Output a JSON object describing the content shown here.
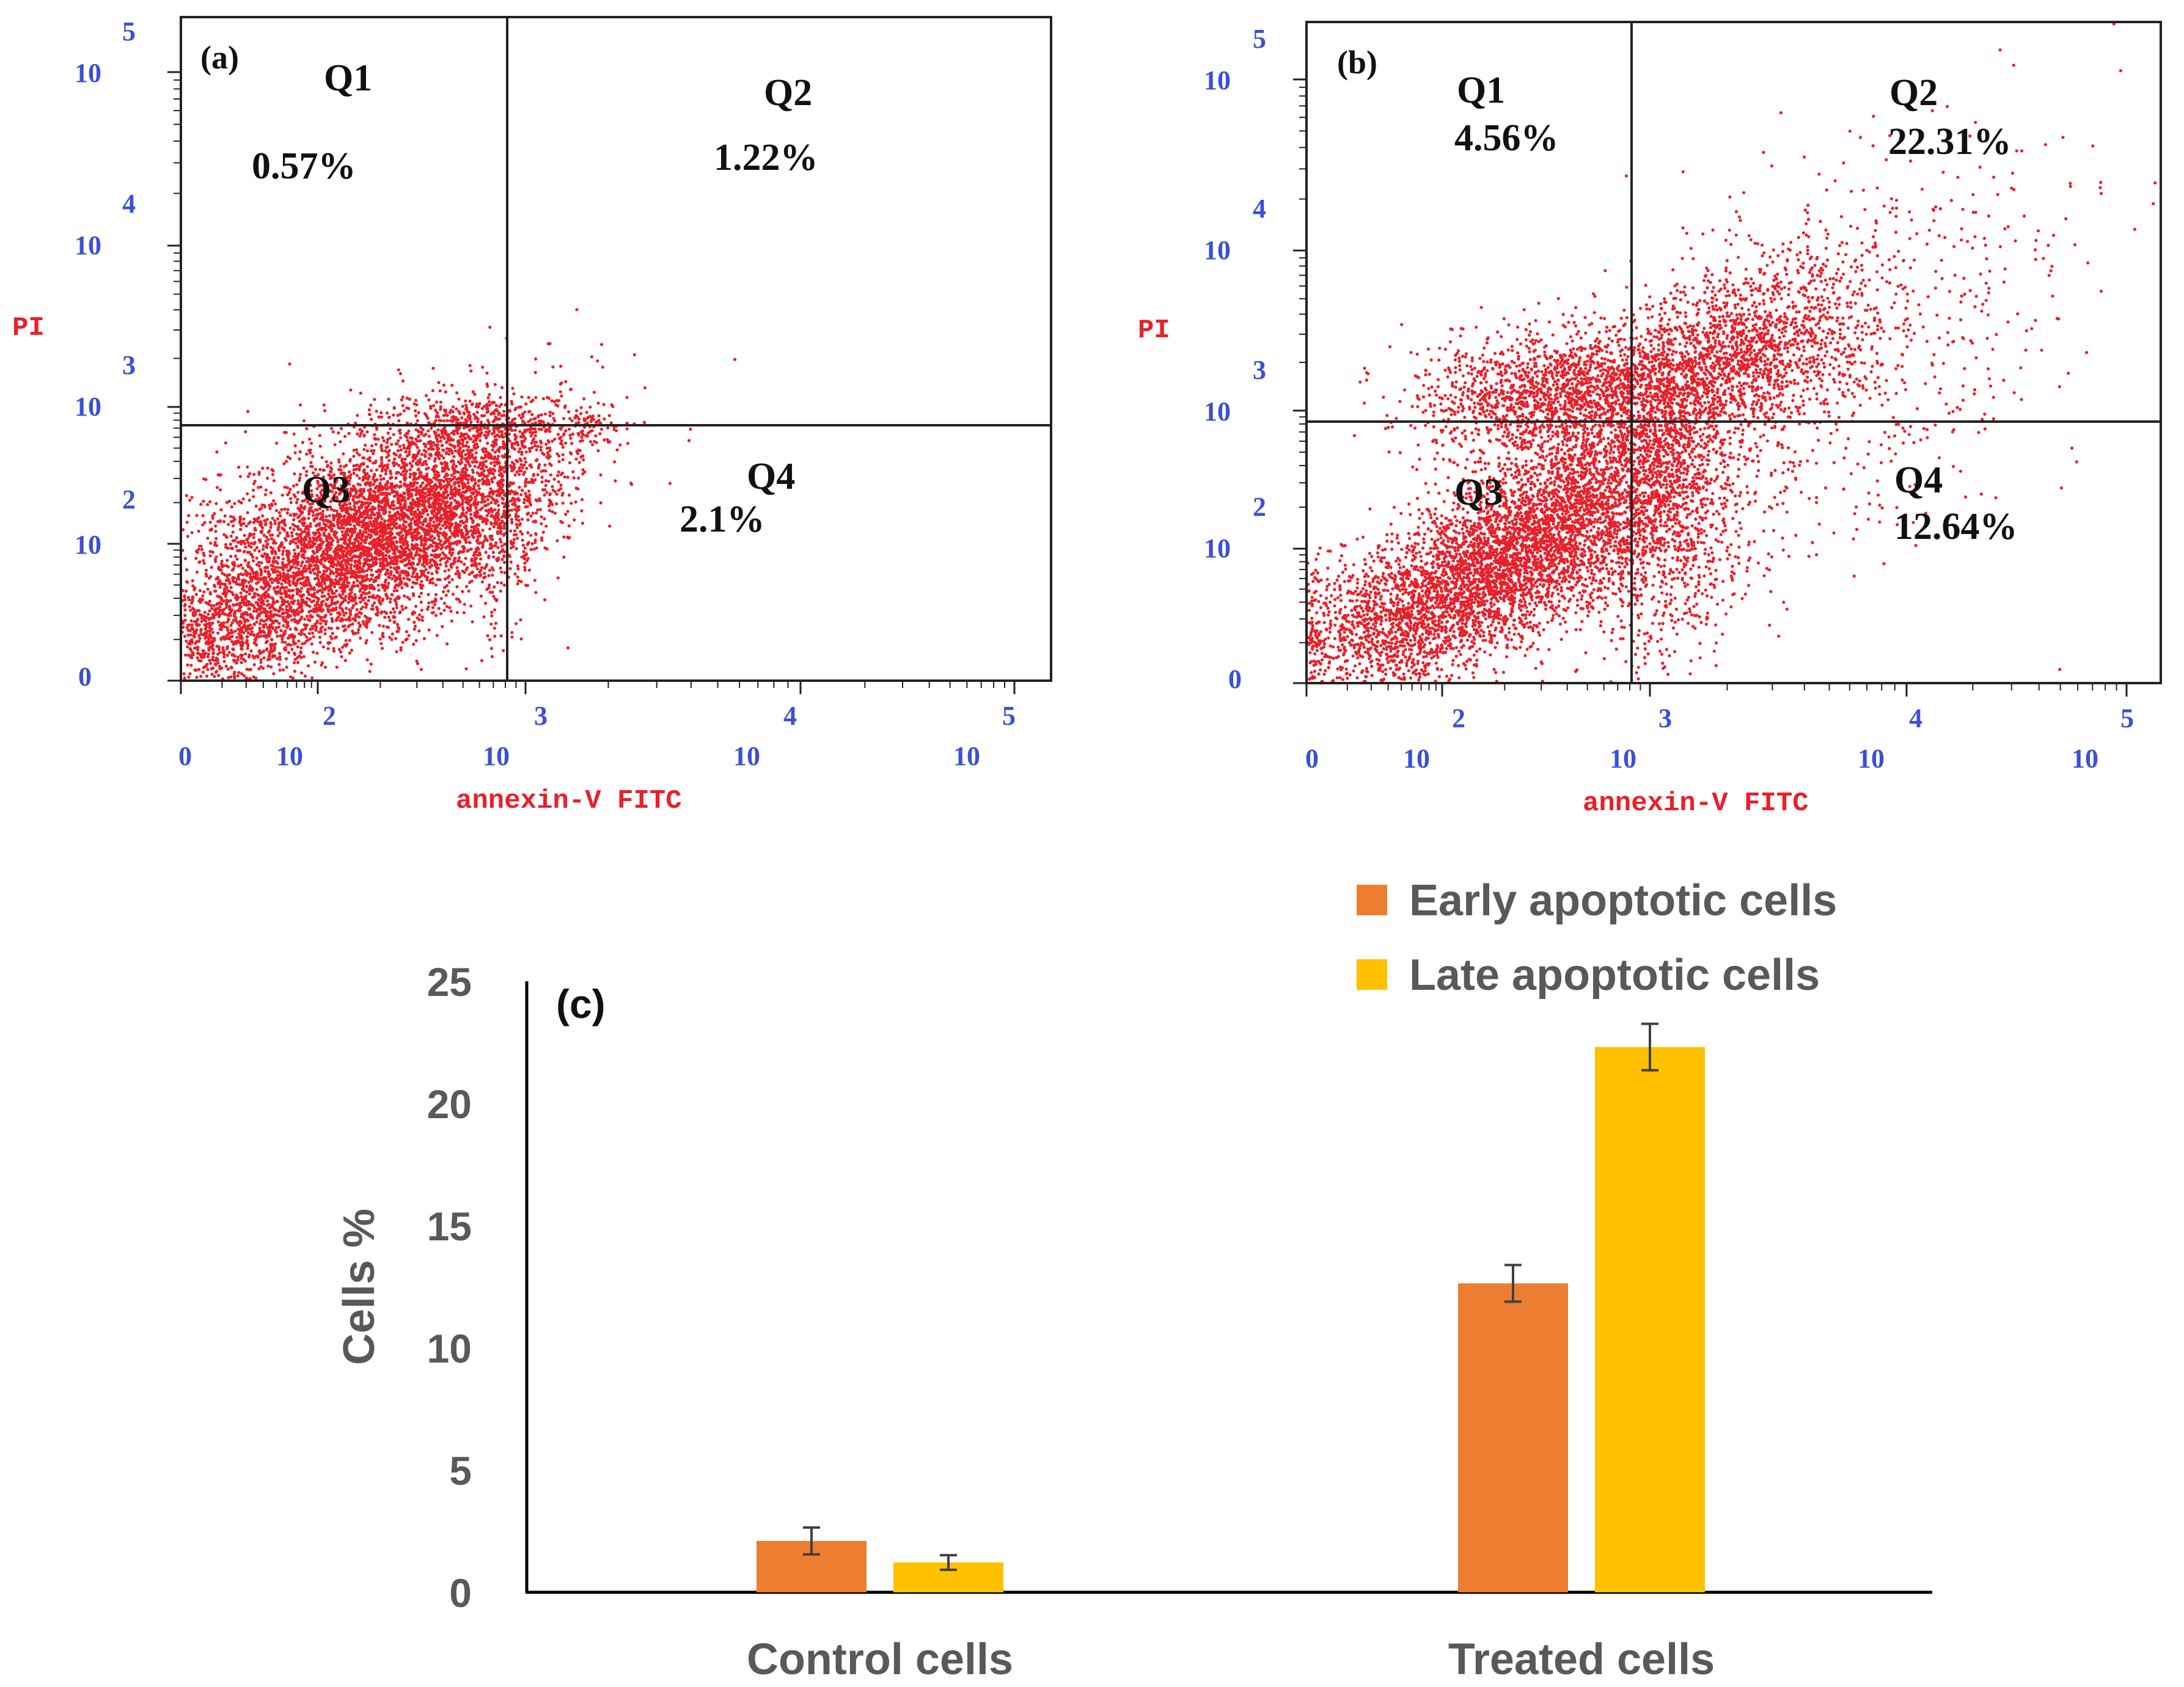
{
  "chart_data": [
    {
      "type": "scatter",
      "panel_label": "(a)",
      "xlabel": "annexin-V FITC",
      "ylabel": "PI",
      "x_ticks": [
        {
          "base": "10",
          "exp": "0"
        },
        {
          "base": "10",
          "exp": "2"
        },
        {
          "base": "10",
          "exp": "3"
        },
        {
          "base": "10",
          "exp": "4"
        },
        {
          "base": "10",
          "exp": "5"
        }
      ],
      "y_ticks": [
        {
          "base": "10",
          "exp": "0"
        },
        {
          "base": "10",
          "exp": "2"
        },
        {
          "base": "10",
          "exp": "3"
        },
        {
          "base": "10",
          "exp": "4"
        },
        {
          "base": "10",
          "exp": "5"
        }
      ],
      "x_tick_labels": [
        "0",
        "10",
        "10",
        "10",
        "10"
      ],
      "x_tick_exps": [
        "",
        "2",
        "3",
        "4",
        "5"
      ],
      "y_tick_labels": [
        "0",
        "10",
        "10",
        "10",
        "10"
      ],
      "y_tick_exps": [
        "",
        "2",
        "3",
        "4",
        "5"
      ],
      "quadrants": [
        {
          "name": "Q1",
          "value": "0.57%"
        },
        {
          "name": "Q2",
          "value": "1.22%"
        },
        {
          "name": "Q3",
          "value": ""
        },
        {
          "name": "Q4",
          "value": "2.1%"
        }
      ],
      "point_color": "#e8202a"
    },
    {
      "type": "scatter",
      "panel_label": "(b)",
      "xlabel": "annexin-V FITC",
      "ylabel": "PI",
      "x_tick_labels": [
        "0",
        "10",
        "10",
        "10",
        "10"
      ],
      "x_tick_exps": [
        "",
        "2",
        "3",
        "4",
        "5"
      ],
      "y_tick_labels": [
        "0",
        "10",
        "10",
        "10",
        "10"
      ],
      "y_tick_exps": [
        "",
        "2",
        "3",
        "4",
        "5"
      ],
      "quadrants": [
        {
          "name": "Q1",
          "value": "4.56%"
        },
        {
          "name": "Q2",
          "value": "22.31%"
        },
        {
          "name": "Q3",
          "value": ""
        },
        {
          "name": "Q4",
          "value": "12.64%"
        }
      ],
      "point_color": "#e8202a"
    },
    {
      "type": "bar",
      "panel_label": "(c)",
      "categories": [
        "Control cells",
        "Treated cells"
      ],
      "series": [
        {
          "name": "Early apoptotic cells",
          "values": [
            2.1,
            12.64
          ],
          "errors": [
            0.55,
            0.75
          ],
          "color": "#ed7d31"
        },
        {
          "name": "Late apoptotic cells",
          "values": [
            1.22,
            22.31
          ],
          "errors": [
            0.3,
            0.95
          ],
          "color": "#ffc000"
        }
      ],
      "ylabel": "Cells %",
      "ylim": [
        0,
        25
      ],
      "yticks": [
        0,
        5,
        10,
        15,
        20,
        25
      ]
    }
  ]
}
